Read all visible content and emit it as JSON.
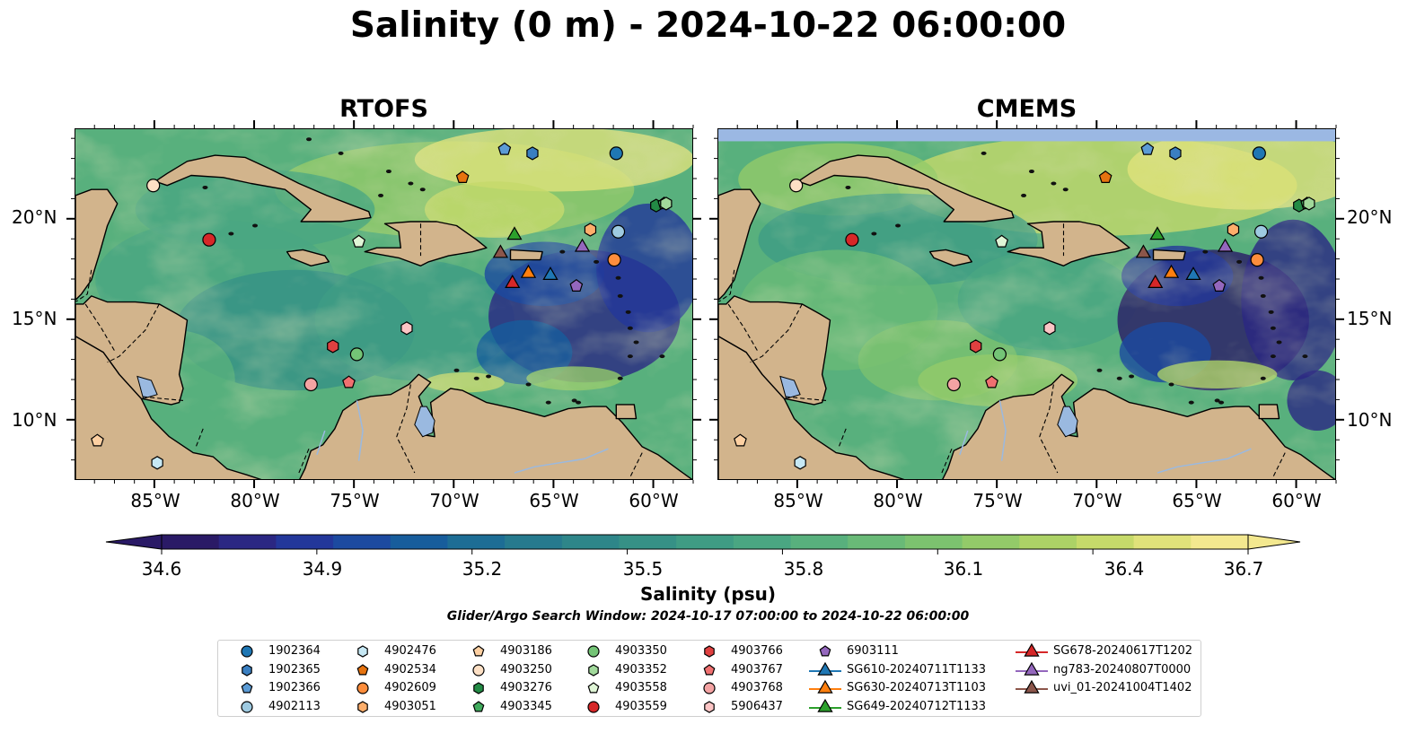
{
  "figure": {
    "title": "Salinity (0 m) - 2024-10-22 06:00:00",
    "panels": [
      {
        "title": "RTOFS",
        "fill_top": false
      },
      {
        "title": "CMEMS",
        "fill_top": true
      }
    ],
    "lat_labels": [
      "20°N",
      "15°N",
      "10°N"
    ],
    "lon_labels": [
      "85°W",
      "80°W",
      "75°W",
      "70°W",
      "65°W",
      "60°W"
    ],
    "extent": {
      "lon": [
        -89,
        -58
      ],
      "lat": [
        7,
        24.5
      ]
    },
    "colorbar": {
      "ticks": [
        "34.6",
        "34.9",
        "35.2",
        "35.5",
        "35.8",
        "36.1",
        "36.4",
        "36.7"
      ],
      "label": "Salinity (psu)",
      "colors": [
        "#2a1a66",
        "#2b2783",
        "#23379a",
        "#1c4aa0",
        "#175d9c",
        "#1d6d95",
        "#267a8e",
        "#2e8689",
        "#369186",
        "#3f9c84",
        "#4aa682",
        "#58b07d",
        "#69ba77",
        "#7cc26f",
        "#93ca69",
        "#acd266",
        "#c6da6a",
        "#e0e27a",
        "#f3e88f"
      ]
    },
    "subtitle": "Glider/Argo Search Window: 2024-10-17 07:00:00 to 2024-10-22 06:00:00"
  },
  "colors": {
    "land": "#d2b48c",
    "lake": "#9ab9e0",
    "cmems_nodata": "#9bb8e3"
  },
  "legend": [
    {
      "label": "1902364",
      "marker": "circle",
      "color": "#1f77b4"
    },
    {
      "label": "1902365",
      "marker": "hexagon",
      "color": "#3a7fc1"
    },
    {
      "label": "1902366",
      "marker": "pentagon",
      "color": "#5b9bd5"
    },
    {
      "label": "4902113",
      "marker": "circle",
      "color": "#9ecae1"
    },
    {
      "label": "4902476",
      "marker": "hexagon",
      "color": "#c6e8f4"
    },
    {
      "label": "4902534",
      "marker": "pentagon",
      "color": "#e6730f"
    },
    {
      "label": "4902609",
      "marker": "circle",
      "color": "#fd8d3c"
    },
    {
      "label": "4903051",
      "marker": "hexagon",
      "color": "#fdae6b"
    },
    {
      "label": "4903186",
      "marker": "pentagon",
      "color": "#fdd0a2"
    },
    {
      "label": "4903250",
      "marker": "circle",
      "color": "#fde0c5"
    },
    {
      "label": "4903276",
      "marker": "hexagon",
      "color": "#238b45"
    },
    {
      "label": "4903345",
      "marker": "pentagon",
      "color": "#41ab5d"
    },
    {
      "label": "4903350",
      "marker": "circle",
      "color": "#74c476"
    },
    {
      "label": "4903352",
      "marker": "hexagon",
      "color": "#a1d99b"
    },
    {
      "label": "4903558",
      "marker": "pentagon",
      "color": "#dff5d6"
    },
    {
      "label": "4903559",
      "marker": "circle",
      "color": "#d62728"
    },
    {
      "label": "4903766",
      "marker": "hexagon",
      "color": "#e04040"
    },
    {
      "label": "4903767",
      "marker": "pentagon",
      "color": "#f07070"
    },
    {
      "label": "4903768",
      "marker": "circle",
      "color": "#f4a3a3"
    },
    {
      "label": "5906437",
      "marker": "hexagon",
      "color": "#fcc5c5"
    },
    {
      "label": "6903111",
      "marker": "pentagon",
      "color": "#9467bd"
    },
    {
      "label": "SG610-20240711T1133",
      "marker": "triangle",
      "color": "#1f77b4"
    },
    {
      "label": "SG630-20240713T1103",
      "marker": "triangle",
      "color": "#ff7f0e"
    },
    {
      "label": "SG649-20240712T1133",
      "marker": "triangle",
      "color": "#2ca02c"
    },
    {
      "label": "SG678-20240617T1202",
      "marker": "triangle",
      "color": "#d62728"
    },
    {
      "label": "ng783-20240807T0000",
      "marker": "triangle",
      "color": "#9467bd"
    },
    {
      "label": "uvi_01-20241004T1402",
      "marker": "triangle",
      "color": "#8c564b"
    }
  ],
  "observations": [
    {
      "id": "1902364",
      "lon": -61.9,
      "lat": 23.3
    },
    {
      "id": "1902365",
      "lon": -66.1,
      "lat": 23.3
    },
    {
      "id": "1902366",
      "lon": -67.5,
      "lat": 23.5
    },
    {
      "id": "4902113",
      "lon": -61.8,
      "lat": 19.4
    },
    {
      "id": "4902476",
      "lon": -84.9,
      "lat": 7.9
    },
    {
      "id": "4902534",
      "lon": -69.6,
      "lat": 22.1
    },
    {
      "id": "4902609",
      "lon": -62.0,
      "lat": 18.0
    },
    {
      "id": "4903051",
      "lon": -63.2,
      "lat": 19.5
    },
    {
      "id": "4903186",
      "lon": -87.9,
      "lat": 9.0
    },
    {
      "id": "4903250",
      "lon": -85.1,
      "lat": 21.7
    },
    {
      "id": "4903276",
      "lon": -59.9,
      "lat": 20.7
    },
    {
      "id": "4903345",
      "lon": -59.5,
      "lat": 20.8
    },
    {
      "id": "4903350",
      "lon": -74.9,
      "lat": 13.3
    },
    {
      "id": "4903352",
      "lon": -59.4,
      "lat": 20.8
    },
    {
      "id": "4903558",
      "lon": -74.8,
      "lat": 18.9
    },
    {
      "id": "4903559",
      "lon": -82.3,
      "lat": 19.0
    },
    {
      "id": "4903766",
      "lon": -76.1,
      "lat": 13.7
    },
    {
      "id": "4903767",
      "lon": -75.3,
      "lat": 11.9
    },
    {
      "id": "4903768",
      "lon": -77.2,
      "lat": 11.8
    },
    {
      "id": "5906437",
      "lon": -72.4,
      "lat": 14.6
    },
    {
      "id": "6903111",
      "lon": -63.9,
      "lat": 16.7
    },
    {
      "id": "SG610-20240711T1133",
      "lon": -65.2,
      "lat": 17.3
    },
    {
      "id": "SG630-20240713T1103",
      "lon": -66.3,
      "lat": 17.4
    },
    {
      "id": "SG649-20240712T1133",
      "lon": -67.0,
      "lat": 19.3
    },
    {
      "id": "SG678-20240617T1202",
      "lon": -67.1,
      "lat": 16.9
    },
    {
      "id": "ng783-20240807T0000",
      "lon": -63.6,
      "lat": 18.7
    },
    {
      "id": "uvi_01-20241004T1402",
      "lon": -67.7,
      "lat": 18.4
    }
  ]
}
